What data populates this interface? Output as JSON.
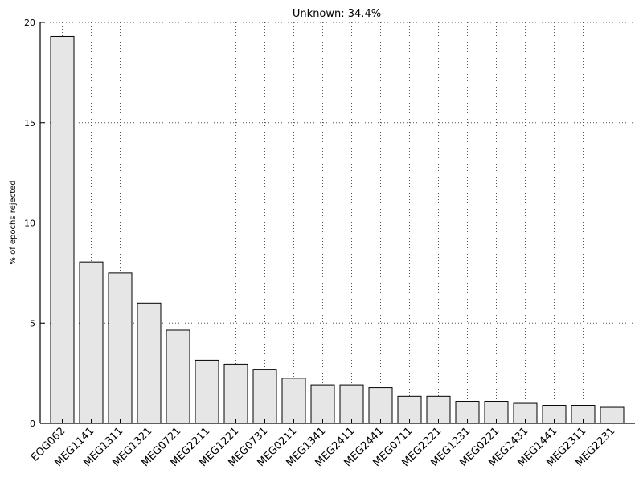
{
  "chart_data": {
    "type": "bar",
    "title": "Unknown: 34.4%",
    "xlabel": "",
    "ylabel": "% of epochs rejected",
    "ylim": [
      0,
      20
    ],
    "yticks": [
      0,
      5,
      10,
      15,
      20
    ],
    "grid": true,
    "bar_color": "#e6e6e6",
    "edge_color": "#000000",
    "categories": [
      "EOG062",
      "MEG1141",
      "MEG1311",
      "MEG1321",
      "MEG0721",
      "MEG2211",
      "MEG1221",
      "MEG0731",
      "MEG0211",
      "MEG1341",
      "MEG2411",
      "MEG2441",
      "MEG0711",
      "MEG2221",
      "MEG1231",
      "MEG0221",
      "MEG2431",
      "MEG1441",
      "MEG2311",
      "MEG2231"
    ],
    "values": [
      19.3,
      8.05,
      7.5,
      6.0,
      4.65,
      3.15,
      2.95,
      2.7,
      2.25,
      1.92,
      1.92,
      1.78,
      1.35,
      1.35,
      1.1,
      1.1,
      1.0,
      0.9,
      0.9,
      0.8
    ]
  }
}
